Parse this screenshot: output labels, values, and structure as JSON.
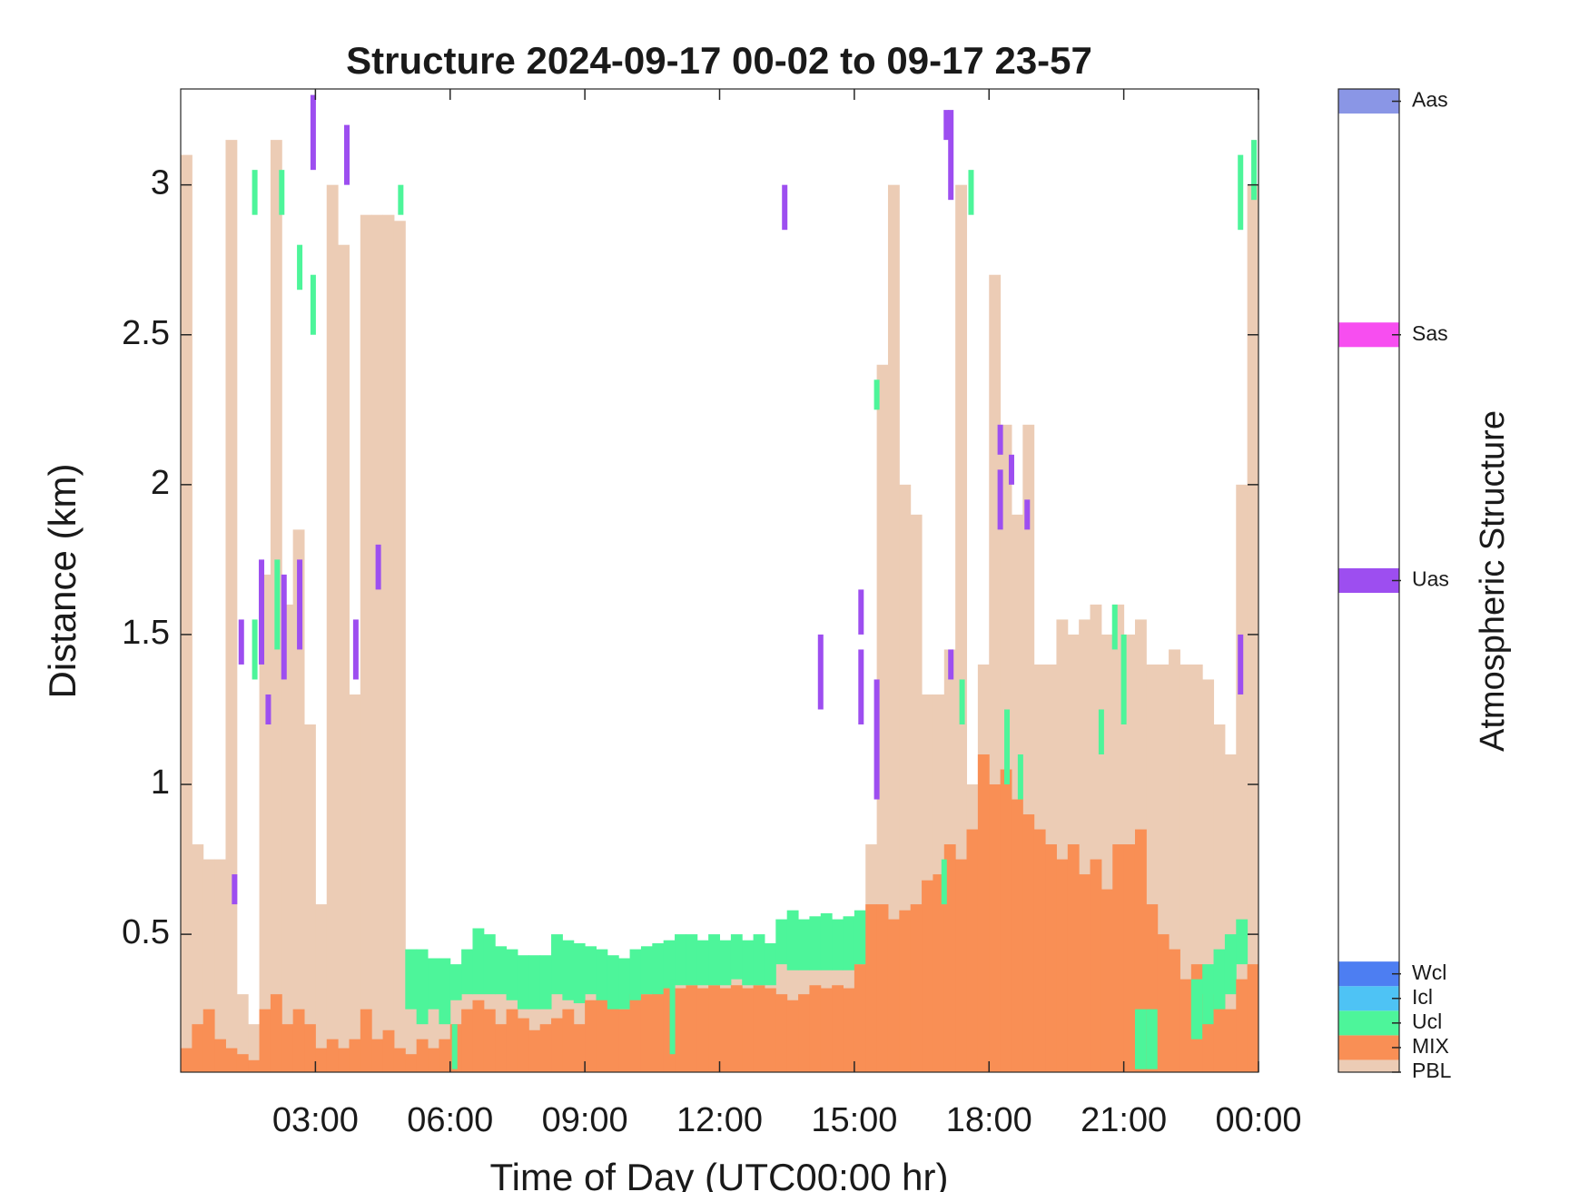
{
  "chart_data": {
    "type": "structure",
    "title": "Structure 2024-09-17 00-02 to 09-17 23-57",
    "xlabel": "Time of Day (UTC00:00 hr)",
    "ylabel": "Distance (km)",
    "colorbar_label": "Atmospheric Structure",
    "xlim": [
      0,
      24
    ],
    "xticks": [
      {
        "value": 3,
        "label": "03:00"
      },
      {
        "value": 6,
        "label": "06:00"
      },
      {
        "value": 9,
        "label": "09:00"
      },
      {
        "value": 12,
        "label": "12:00"
      },
      {
        "value": 15,
        "label": "15:00"
      },
      {
        "value": 18,
        "label": "18:00"
      },
      {
        "value": 21,
        "label": "21:00"
      },
      {
        "value": 24,
        "label": "00:00"
      }
    ],
    "ylim": [
      0.04,
      3.32
    ],
    "yticks": [
      0.5,
      1,
      1.5,
      2,
      2.5,
      3
    ],
    "x": [
      0,
      0.25,
      0.5,
      0.75,
      1,
      1.25,
      1.5,
      1.75,
      2,
      2.25,
      2.5,
      2.75,
      3,
      3.25,
      3.5,
      3.75,
      4,
      4.25,
      4.5,
      4.75,
      5,
      5.25,
      5.5,
      5.75,
      6,
      6.25,
      6.5,
      6.75,
      7,
      7.25,
      7.5,
      7.75,
      8,
      8.25,
      8.5,
      8.75,
      9,
      9.25,
      9.5,
      9.75,
      10,
      10.25,
      10.5,
      10.75,
      11,
      11.25,
      11.5,
      11.75,
      12,
      12.25,
      12.5,
      12.75,
      13,
      13.25,
      13.5,
      13.75,
      14,
      14.25,
      14.5,
      14.75,
      15,
      15.25,
      15.5,
      15.75,
      16,
      16.25,
      16.5,
      16.75,
      17,
      17.25,
      17.5,
      17.75,
      18,
      18.25,
      18.5,
      18.75,
      19,
      19.25,
      19.5,
      19.75,
      20,
      20.25,
      20.5,
      20.75,
      21,
      21.25,
      21.5,
      21.75,
      22,
      22.25,
      22.5,
      22.75,
      23,
      23.25,
      23.5,
      23.75
    ],
    "pbl_top": [
      3.1,
      0.8,
      0.75,
      0.75,
      3.15,
      0.3,
      0.2,
      1.7,
      3.15,
      1.6,
      1.85,
      1.2,
      0.6,
      3.0,
      2.8,
      1.3,
      2.9,
      2.9,
      2.9,
      2.88,
      0.4,
      0.4,
      0.38,
      0.38,
      0.36,
      0.38,
      0.36,
      0.35,
      0.36,
      0.35,
      0.35,
      0.35,
      0.35,
      0.36,
      0.35,
      0.35,
      0.36,
      0.35,
      0.35,
      0.35,
      0.36,
      0.36,
      0.36,
      0.36,
      0.37,
      0.37,
      0.37,
      0.37,
      0.37,
      0.38,
      0.37,
      0.37,
      0.37,
      0.42,
      0.4,
      0.4,
      0.4,
      0.4,
      0.4,
      0.4,
      0.42,
      0.8,
      2.4,
      3.0,
      2.0,
      1.9,
      1.3,
      1.3,
      1.45,
      3.0,
      1.0,
      1.4,
      2.7,
      2.2,
      1.9,
      2.2,
      1.4,
      1.4,
      1.55,
      1.5,
      1.55,
      1.6,
      1.5,
      1.6,
      1.5,
      1.55,
      1.4,
      1.4,
      1.45,
      1.4,
      1.4,
      1.35,
      1.2,
      1.1,
      2.0,
      3.0
    ],
    "mix_top": [
      0.12,
      0.2,
      0.25,
      0.15,
      0.12,
      0.1,
      0.08,
      0.25,
      0.3,
      0.2,
      0.25,
      0.2,
      0.12,
      0.15,
      0.12,
      0.15,
      0.25,
      0.15,
      0.18,
      0.12,
      0.1,
      0.15,
      0.12,
      0.15,
      0.2,
      0.25,
      0.28,
      0.25,
      0.2,
      0.25,
      0.22,
      0.18,
      0.2,
      0.22,
      0.25,
      0.2,
      0.28,
      0.3,
      0.28,
      0.25,
      0.3,
      0.3,
      0.31,
      0.32,
      0.32,
      0.33,
      0.32,
      0.33,
      0.32,
      0.33,
      0.32,
      0.33,
      0.32,
      0.3,
      0.28,
      0.3,
      0.33,
      0.32,
      0.33,
      0.32,
      0.4,
      0.6,
      0.6,
      0.55,
      0.58,
      0.6,
      0.68,
      0.7,
      0.8,
      0.75,
      0.85,
      1.1,
      1.0,
      1.05,
      0.95,
      0.9,
      0.85,
      0.8,
      0.75,
      0.8,
      0.7,
      0.75,
      0.65,
      0.8,
      0.8,
      0.85,
      0.6,
      0.5,
      0.45,
      0.35,
      0.4,
      0.3,
      0.3,
      0.25,
      0.35,
      0.4
    ],
    "ucl_bottom": [
      null,
      null,
      null,
      null,
      null,
      null,
      null,
      null,
      null,
      null,
      null,
      null,
      null,
      null,
      null,
      null,
      null,
      null,
      null,
      null,
      0.25,
      0.2,
      0.25,
      0.2,
      0.28,
      0.3,
      0.3,
      0.3,
      0.3,
      0.28,
      0.25,
      0.25,
      0.25,
      0.3,
      0.28,
      0.27,
      0.3,
      0.28,
      0.25,
      0.25,
      0.28,
      0.3,
      0.3,
      0.32,
      0.33,
      0.33,
      0.33,
      0.33,
      0.33,
      0.35,
      0.33,
      0.33,
      0.33,
      0.4,
      0.38,
      0.38,
      0.38,
      0.38,
      0.38,
      0.38,
      0.4,
      null,
      null,
      null,
      null,
      null,
      null,
      null,
      null,
      null,
      null,
      null,
      null,
      null,
      null,
      null,
      null,
      null,
      null,
      null,
      null,
      null,
      null,
      null,
      null,
      0.05,
      0.05,
      null,
      null,
      null,
      0.15,
      0.2,
      0.25,
      0.3,
      0.4,
      null
    ],
    "ucl_top": [
      null,
      null,
      null,
      null,
      null,
      null,
      null,
      null,
      null,
      null,
      null,
      null,
      null,
      null,
      null,
      null,
      null,
      null,
      null,
      null,
      0.45,
      0.45,
      0.42,
      0.42,
      0.4,
      0.45,
      0.52,
      0.5,
      0.46,
      0.45,
      0.43,
      0.43,
      0.43,
      0.5,
      0.48,
      0.47,
      0.46,
      0.45,
      0.43,
      0.42,
      0.45,
      0.46,
      0.47,
      0.48,
      0.5,
      0.5,
      0.48,
      0.5,
      0.48,
      0.5,
      0.48,
      0.5,
      0.47,
      0.55,
      0.58,
      0.55,
      0.56,
      0.57,
      0.55,
      0.56,
      0.58,
      null,
      null,
      null,
      null,
      null,
      null,
      null,
      null,
      null,
      null,
      null,
      null,
      null,
      null,
      null,
      null,
      null,
      null,
      null,
      null,
      null,
      null,
      null,
      null,
      0.25,
      0.25,
      null,
      null,
      null,
      0.35,
      0.4,
      0.45,
      0.5,
      0.55,
      null
    ],
    "ucl_streaks": [
      [
        1.65,
        2.9,
        3.05
      ],
      [
        2.25,
        2.9,
        3.05
      ],
      [
        2.65,
        2.65,
        2.8
      ],
      [
        2.95,
        2.5,
        2.7
      ],
      [
        4.9,
        2.9,
        3.0
      ],
      [
        1.65,
        1.35,
        1.55
      ],
      [
        2.15,
        1.45,
        1.75
      ],
      [
        15.5,
        2.25,
        2.35
      ],
      [
        17.6,
        2.9,
        3.05
      ],
      [
        17.0,
        0.6,
        0.75
      ],
      [
        17.4,
        1.2,
        1.35
      ],
      [
        18.4,
        1.0,
        1.25
      ],
      [
        18.7,
        0.95,
        1.1
      ],
      [
        20.5,
        1.1,
        1.25
      ],
      [
        20.8,
        1.45,
        1.6
      ],
      [
        21.0,
        1.2,
        1.5
      ],
      [
        23.6,
        2.85,
        3.1
      ],
      [
        23.9,
        2.95,
        3.15
      ],
      [
        6.1,
        0.05,
        0.2
      ],
      [
        10.95,
        0.1,
        0.35
      ]
    ],
    "uas_streaks": [
      [
        1.2,
        0.6,
        0.7
      ],
      [
        1.35,
        1.4,
        1.55
      ],
      [
        1.8,
        1.4,
        1.75
      ],
      [
        1.95,
        1.2,
        1.3
      ],
      [
        2.3,
        1.35,
        1.7
      ],
      [
        2.65,
        1.45,
        1.75
      ],
      [
        2.95,
        3.05,
        3.3
      ],
      [
        3.7,
        3.0,
        3.2
      ],
      [
        3.9,
        1.35,
        1.55
      ],
      [
        4.4,
        1.65,
        1.8
      ],
      [
        13.45,
        2.85,
        3.0
      ],
      [
        14.25,
        1.25,
        1.5
      ],
      [
        15.15,
        1.2,
        1.45
      ],
      [
        15.15,
        1.5,
        1.65
      ],
      [
        15.5,
        0.95,
        1.35
      ],
      [
        17.05,
        3.15,
        3.25
      ],
      [
        17.15,
        2.95,
        3.25
      ],
      [
        17.15,
        1.35,
        1.45
      ],
      [
        18.25,
        1.85,
        2.05
      ],
      [
        18.25,
        2.1,
        2.2
      ],
      [
        18.5,
        2.0,
        2.1
      ],
      [
        18.85,
        1.85,
        1.95
      ],
      [
        23.6,
        1.3,
        1.5
      ]
    ],
    "colorbar_lim": [
      0,
      40
    ],
    "colorbar_ticks": [
      {
        "value": 0,
        "label": "PBL"
      },
      {
        "value": 1,
        "label": "MIX"
      },
      {
        "value": 2,
        "label": "Ucl"
      },
      {
        "value": 3,
        "label": "Icl"
      },
      {
        "value": 4,
        "label": "Wcl"
      },
      {
        "value": 20,
        "label": "Uas"
      },
      {
        "value": 30,
        "label": "Sas"
      },
      {
        "value": 39.5,
        "label": "Aas"
      }
    ],
    "colorbar_colors": [
      "#ecccb5",
      "#f98f55",
      "#4df59a",
      "#4ec3f5",
      "#4d7ef2",
      "#9d4ef0",
      "#f74ef0",
      "#8a96e6"
    ]
  }
}
